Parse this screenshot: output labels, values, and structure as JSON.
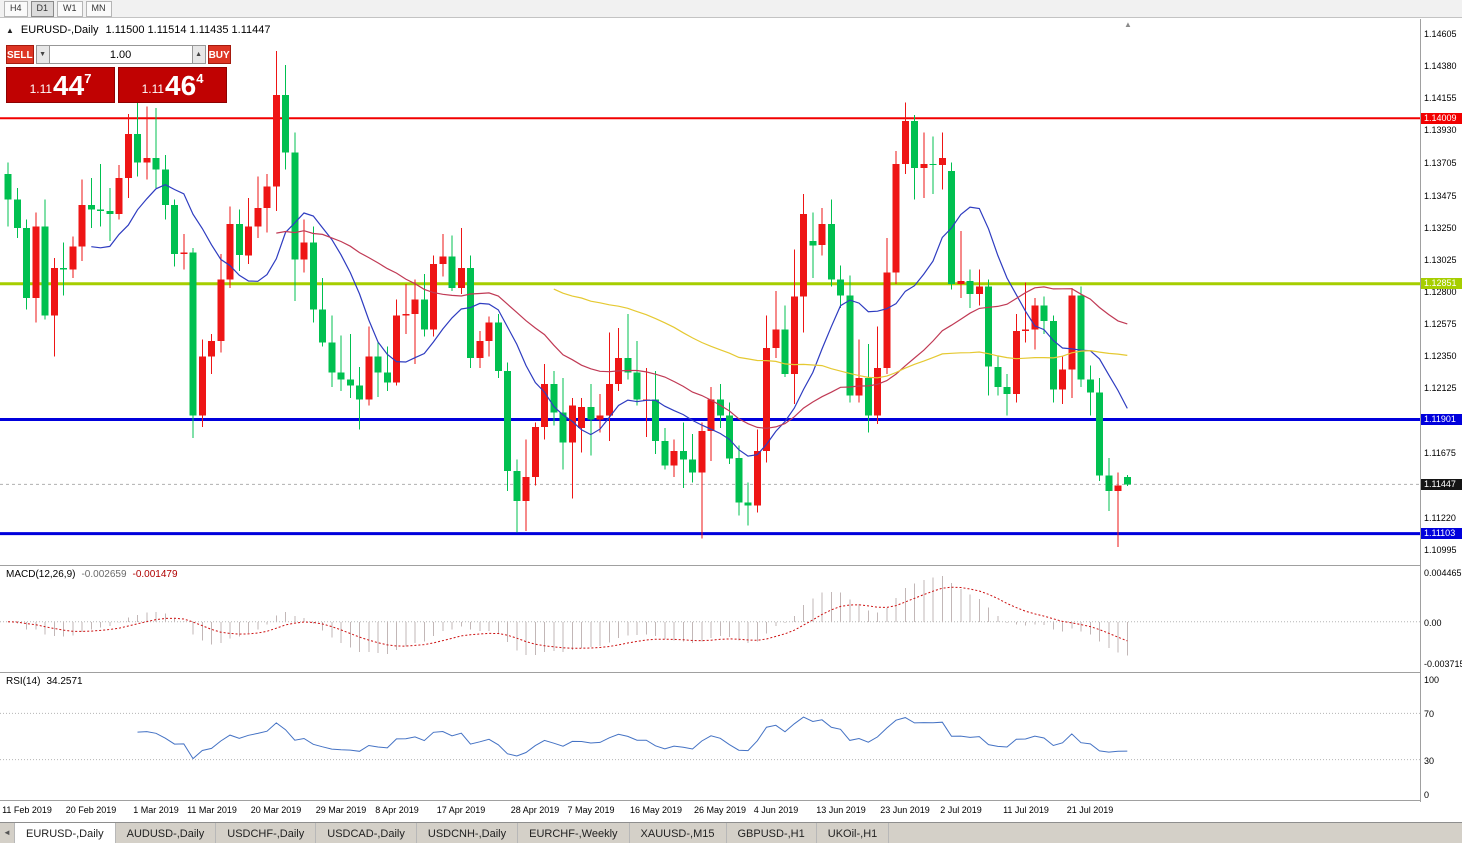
{
  "window": {
    "timeframes": [
      "H4",
      "D1",
      "W1",
      "MN"
    ],
    "active_timeframe": "D1"
  },
  "icons": {
    "one_click_toggle": "▲",
    "scroll_to_end": "▲",
    "tab_scroll_left": "◄",
    "volume_down": "▼",
    "volume_up": "▲"
  },
  "chart": {
    "title": "EURUSD-,Daily",
    "ohlc_line": "1.11500 1.11514 1.11435 1.11447"
  },
  "trade_panel": {
    "sell_label": "SELL",
    "buy_label": "BUY",
    "volume": "1.00",
    "bid": {
      "prefix": "1.11",
      "main": "44",
      "pip": "7"
    },
    "ask": {
      "prefix": "1.11",
      "main": "46",
      "pip": "4"
    }
  },
  "indicators": {
    "macd": {
      "label": "MACD(12,26,9)",
      "value": "-0.002659",
      "signal": "-0.001479",
      "axis_ticks": [
        "0.004465",
        "0.00",
        "-0.003715"
      ]
    },
    "rsi": {
      "label": "RSI(14)",
      "value": "34.2571",
      "axis_ticks": [
        "100",
        "70",
        "30",
        "0"
      ],
      "levels": [
        70,
        30
      ]
    }
  },
  "price_axis": {
    "ticks": [
      "1.14605",
      "1.14380",
      "1.14155",
      "1.13930",
      "1.13705",
      "1.13475",
      "1.13250",
      "1.13025",
      "1.12800",
      "1.12575",
      "1.12350",
      "1.12125",
      "1.11675",
      "1.11220",
      "1.10995"
    ],
    "badges": [
      {
        "text": "1.14009",
        "value": 1.14009,
        "color": "#f20000"
      },
      {
        "text": "1.12851",
        "value": 1.12851,
        "color": "#a6ce00"
      },
      {
        "text": "1.11901",
        "value": 1.11901,
        "color": "#0000dc"
      },
      {
        "text": "1.11447",
        "value": 1.11447,
        "color": "#141414"
      },
      {
        "text": "1.11103",
        "value": 1.11103,
        "color": "#0000dc"
      }
    ]
  },
  "time_axis": {
    "labels": [
      {
        "text": "11 Feb 2019",
        "i": 2
      },
      {
        "text": "20 Feb 2019",
        "i": 9
      },
      {
        "text": "1 Mar 2019",
        "i": 16
      },
      {
        "text": "11 Mar 2019",
        "i": 22
      },
      {
        "text": "20 Mar 2019",
        "i": 29
      },
      {
        "text": "29 Mar 2019",
        "i": 36
      },
      {
        "text": "8 Apr 2019",
        "i": 42
      },
      {
        "text": "17 Apr 2019",
        "i": 49
      },
      {
        "text": "28 Apr 2019",
        "i": 57
      },
      {
        "text": "7 May 2019",
        "i": 63
      },
      {
        "text": "16 May 2019",
        "i": 70
      },
      {
        "text": "26 May 2019",
        "i": 77
      },
      {
        "text": "4 Jun 2019",
        "i": 83
      },
      {
        "text": "13 Jun 2019",
        "i": 90
      },
      {
        "text": "23 Jun 2019",
        "i": 97
      },
      {
        "text": "2 Jul 2019",
        "i": 103
      },
      {
        "text": "11 Jul 2019",
        "i": 110
      },
      {
        "text": "21 Jul 2019",
        "i": 117
      }
    ]
  },
  "tabs": {
    "items": [
      "EURUSD-,Daily",
      "AUDUSD-,Daily",
      "USDCHF-,Daily",
      "USDCAD-,Daily",
      "USDCNH-,Daily",
      "EURCHF-,Weekly",
      "XAUUSD-,M15",
      "GBPUSD-,H1",
      "UKOil-,H1"
    ],
    "active": "EURUSD-,Daily"
  },
  "chart_data": {
    "type": "candlestick",
    "symbol": "EURUSD",
    "period": "Daily",
    "price_range": [
      1.10883,
      1.14703
    ],
    "macd_range": [
      -0.0045,
      0.005
    ],
    "rsi_range": [
      -5,
      105
    ],
    "hlines": [
      {
        "value": 1.14009,
        "color": "#f20000",
        "width": 2
      },
      {
        "value": 1.12851,
        "color": "#a6ce00",
        "width": 3
      },
      {
        "value": 1.11901,
        "color": "#0000dc",
        "width": 3
      },
      {
        "value": 1.11103,
        "color": "#0000dc",
        "width": 3
      }
    ],
    "bid_line": {
      "value": 1.11447,
      "color": "#b0b0b0"
    },
    "ma_settings": [
      {
        "period": 10,
        "color": "#2e3cc0"
      },
      {
        "period": 30,
        "color": "#c03a55"
      },
      {
        "period": 60,
        "color": "#e5c932"
      }
    ],
    "colors": {
      "up": "#ee1515",
      "down": "#00c050",
      "macd_hist": "#c2b7b7",
      "macd_signal": "#cc1111",
      "rsi": "#4472c4",
      "level_line": "#b5b5b5"
    },
    "candles": [
      [
        1.1362,
        1.137,
        1.1325,
        1.1344
      ],
      [
        1.1344,
        1.1352,
        1.1317,
        1.1324
      ],
      [
        1.1324,
        1.133,
        1.1267,
        1.1275
      ],
      [
        1.1275,
        1.1335,
        1.1258,
        1.1325
      ],
      [
        1.1325,
        1.1344,
        1.126,
        1.1263
      ],
      [
        1.1263,
        1.1303,
        1.1234,
        1.1296
      ],
      [
        1.1296,
        1.1314,
        1.1277,
        1.1295
      ],
      [
        1.1295,
        1.1318,
        1.1289,
        1.1311
      ],
      [
        1.1311,
        1.1358,
        1.1301,
        1.134
      ],
      [
        1.134,
        1.1359,
        1.1324,
        1.1337
      ],
      [
        1.1337,
        1.1369,
        1.1325,
        1.1336
      ],
      [
        1.1336,
        1.1352,
        1.1315,
        1.1334
      ],
      [
        1.1334,
        1.1368,
        1.133,
        1.1359
      ],
      [
        1.1359,
        1.1404,
        1.1345,
        1.139
      ],
      [
        1.139,
        1.1412,
        1.136,
        1.137
      ],
      [
        1.137,
        1.1409,
        1.1358,
        1.1373
      ],
      [
        1.1373,
        1.1408,
        1.1352,
        1.1365
      ],
      [
        1.1365,
        1.1375,
        1.133,
        1.134
      ],
      [
        1.134,
        1.1344,
        1.1297,
        1.1306
      ],
      [
        1.1306,
        1.132,
        1.1295,
        1.1307
      ],
      [
        1.1307,
        1.131,
        1.1177,
        1.1193
      ],
      [
        1.1193,
        1.1246,
        1.1185,
        1.1234
      ],
      [
        1.1234,
        1.125,
        1.1222,
        1.1245
      ],
      [
        1.1245,
        1.1306,
        1.1237,
        1.1288
      ],
      [
        1.1288,
        1.1339,
        1.1282,
        1.1327
      ],
      [
        1.1327,
        1.1337,
        1.1294,
        1.1305
      ],
      [
        1.1305,
        1.1345,
        1.1299,
        1.1325
      ],
      [
        1.1325,
        1.136,
        1.1317,
        1.1338
      ],
      [
        1.1338,
        1.1362,
        1.1321,
        1.1353
      ],
      [
        1.1353,
        1.1448,
        1.1336,
        1.1417
      ],
      [
        1.1417,
        1.1438,
        1.1365,
        1.1377
      ],
      [
        1.1377,
        1.1391,
        1.1273,
        1.1302
      ],
      [
        1.1302,
        1.133,
        1.1293,
        1.1314
      ],
      [
        1.1314,
        1.1325,
        1.1258,
        1.1267
      ],
      [
        1.1267,
        1.1289,
        1.1241,
        1.1244
      ],
      [
        1.1244,
        1.1263,
        1.1213,
        1.1223
      ],
      [
        1.1223,
        1.1249,
        1.121,
        1.1218
      ],
      [
        1.1218,
        1.125,
        1.1205,
        1.1214
      ],
      [
        1.1214,
        1.1227,
        1.1183,
        1.1204
      ],
      [
        1.1204,
        1.1255,
        1.12,
        1.1234
      ],
      [
        1.1234,
        1.1244,
        1.1206,
        1.1223
      ],
      [
        1.1223,
        1.1241,
        1.121,
        1.1216
      ],
      [
        1.1216,
        1.1274,
        1.1214,
        1.1263
      ],
      [
        1.1263,
        1.1285,
        1.125,
        1.1264
      ],
      [
        1.1264,
        1.1288,
        1.1229,
        1.1274
      ],
      [
        1.1274,
        1.1292,
        1.1248,
        1.1253
      ],
      [
        1.1253,
        1.1305,
        1.1248,
        1.1299
      ],
      [
        1.1299,
        1.132,
        1.129,
        1.1304
      ],
      [
        1.1304,
        1.1319,
        1.128,
        1.1282
      ],
      [
        1.1282,
        1.1324,
        1.1278,
        1.1296
      ],
      [
        1.1296,
        1.1305,
        1.1226,
        1.1233
      ],
      [
        1.1233,
        1.1252,
        1.1226,
        1.1245
      ],
      [
        1.1245,
        1.1262,
        1.1234,
        1.1258
      ],
      [
        1.1258,
        1.1264,
        1.1219,
        1.1224
      ],
      [
        1.1224,
        1.123,
        1.114,
        1.1154
      ],
      [
        1.1154,
        1.1162,
        1.1111,
        1.1133
      ],
      [
        1.1133,
        1.1176,
        1.1112,
        1.115
      ],
      [
        1.115,
        1.1188,
        1.1144,
        1.1185
      ],
      [
        1.1185,
        1.1229,
        1.1176,
        1.1215
      ],
      [
        1.1215,
        1.1224,
        1.1186,
        1.1195
      ],
      [
        1.1195,
        1.1219,
        1.1155,
        1.1174
      ],
      [
        1.1174,
        1.1205,
        1.1135,
        1.12
      ],
      [
        1.1184,
        1.1205,
        1.1167,
        1.1199
      ],
      [
        1.1199,
        1.1215,
        1.1165,
        1.119
      ],
      [
        1.119,
        1.1208,
        1.1181,
        1.1193
      ],
      [
        1.1193,
        1.1251,
        1.1175,
        1.1215
      ],
      [
        1.1215,
        1.1254,
        1.121,
        1.1233
      ],
      [
        1.1233,
        1.1264,
        1.1218,
        1.1223
      ],
      [
        1.1223,
        1.1245,
        1.12,
        1.1204
      ],
      [
        1.1204,
        1.1226,
        1.1178,
        1.1204
      ],
      [
        1.1204,
        1.1224,
        1.1166,
        1.1175
      ],
      [
        1.1175,
        1.1184,
        1.1155,
        1.1158
      ],
      [
        1.1158,
        1.1176,
        1.115,
        1.1168
      ],
      [
        1.1168,
        1.1188,
        1.1142,
        1.1162
      ],
      [
        1.1162,
        1.118,
        1.1146,
        1.1153
      ],
      [
        1.1153,
        1.1188,
        1.1107,
        1.1182
      ],
      [
        1.1182,
        1.1213,
        1.1161,
        1.1204
      ],
      [
        1.1204,
        1.1215,
        1.1184,
        1.1193
      ],
      [
        1.1193,
        1.1202,
        1.1159,
        1.1163
      ],
      [
        1.1163,
        1.1172,
        1.1123,
        1.1132
      ],
      [
        1.1132,
        1.1146,
        1.1116,
        1.113
      ],
      [
        1.113,
        1.1183,
        1.1125,
        1.1168
      ],
      [
        1.1168,
        1.1263,
        1.116,
        1.124
      ],
      [
        1.124,
        1.128,
        1.1233,
        1.1253
      ],
      [
        1.1253,
        1.127,
        1.122,
        1.1222
      ],
      [
        1.1222,
        1.1309,
        1.1201,
        1.1276
      ],
      [
        1.1276,
        1.1348,
        1.1251,
        1.1334
      ],
      [
        1.1315,
        1.1335,
        1.1289,
        1.1312
      ],
      [
        1.1312,
        1.1338,
        1.1305,
        1.1327
      ],
      [
        1.1327,
        1.1344,
        1.1283,
        1.1288
      ],
      [
        1.1288,
        1.1298,
        1.1268,
        1.1277
      ],
      [
        1.1277,
        1.1291,
        1.1202,
        1.1207
      ],
      [
        1.1207,
        1.1246,
        1.1202,
        1.1219
      ],
      [
        1.1219,
        1.1243,
        1.1181,
        1.1193
      ],
      [
        1.1193,
        1.1255,
        1.1187,
        1.1226
      ],
      [
        1.1226,
        1.1317,
        1.1222,
        1.1293
      ],
      [
        1.1293,
        1.1378,
        1.1285,
        1.1369
      ],
      [
        1.1369,
        1.1412,
        1.1362,
        1.1399
      ],
      [
        1.1399,
        1.1403,
        1.1344,
        1.1366
      ],
      [
        1.1366,
        1.1391,
        1.1345,
        1.1369
      ],
      [
        1.1369,
        1.1388,
        1.1348,
        1.1368
      ],
      [
        1.1368,
        1.1391,
        1.1351,
        1.1373
      ],
      [
        1.1364,
        1.137,
        1.1281,
        1.1285
      ],
      [
        1.1285,
        1.1322,
        1.1275,
        1.1287
      ],
      [
        1.1287,
        1.1295,
        1.1268,
        1.1278
      ],
      [
        1.1278,
        1.1295,
        1.127,
        1.1283
      ],
      [
        1.1283,
        1.1288,
        1.1207,
        1.1227
      ],
      [
        1.1227,
        1.1234,
        1.1207,
        1.1213
      ],
      [
        1.1213,
        1.1222,
        1.1193,
        1.1208
      ],
      [
        1.1208,
        1.1264,
        1.1202,
        1.1252
      ],
      [
        1.1252,
        1.1286,
        1.1244,
        1.1253
      ],
      [
        1.1253,
        1.1275,
        1.1239,
        1.127
      ],
      [
        1.127,
        1.1276,
        1.125,
        1.1259
      ],
      [
        1.1259,
        1.1263,
        1.1202,
        1.1211
      ],
      [
        1.1211,
        1.1234,
        1.1201,
        1.1225
      ],
      [
        1.1225,
        1.1282,
        1.1205,
        1.1277
      ],
      [
        1.1277,
        1.1283,
        1.1213,
        1.1218
      ],
      [
        1.1218,
        1.1228,
        1.1193,
        1.1209
      ],
      [
        1.1209,
        1.1219,
        1.1147,
        1.1151
      ],
      [
        1.1151,
        1.1163,
        1.1126,
        1.114
      ],
      [
        1.114,
        1.1153,
        1.1101,
        1.1144
      ],
      [
        1.115,
        1.11514,
        1.11435,
        1.11447
      ]
    ]
  }
}
